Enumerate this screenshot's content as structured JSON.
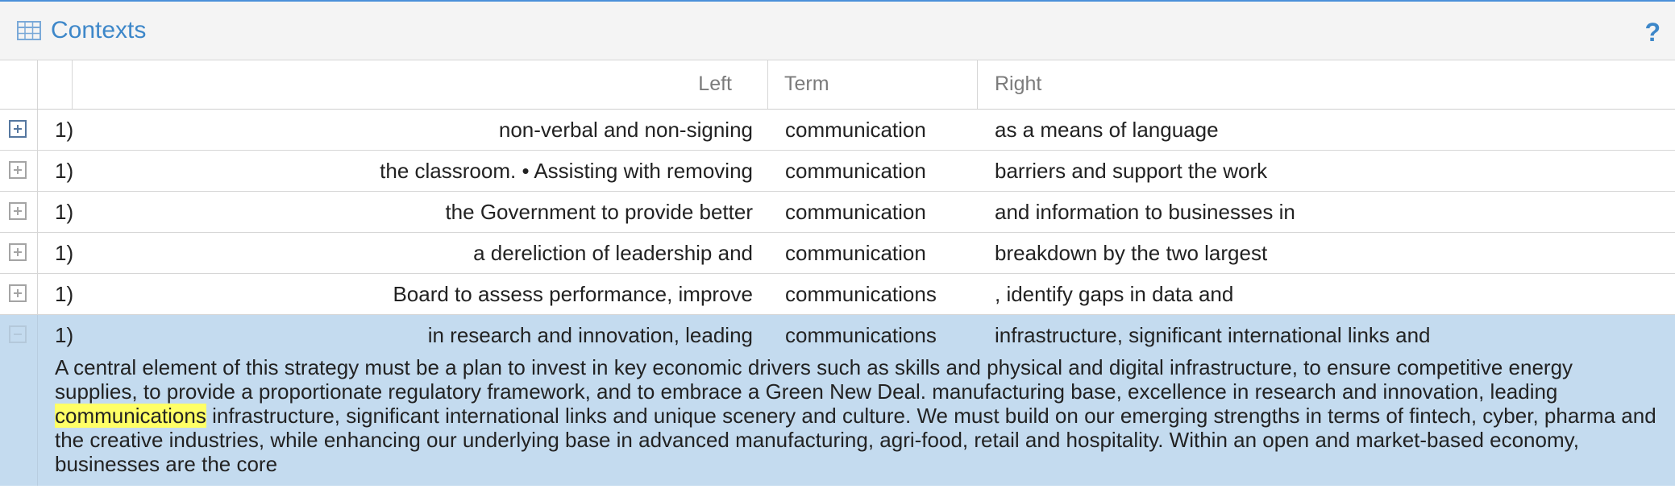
{
  "panel": {
    "title": "Contexts",
    "title_icon": "table-icon",
    "help_label": "?",
    "accent_color": "#3d87c9"
  },
  "columns": {
    "left": "Left",
    "term": "Term",
    "right": "Right"
  },
  "rows": [
    {
      "num": "1)",
      "left": "non-verbal and non-signing",
      "term": "communication",
      "right": "as a means of language",
      "expanded": false
    },
    {
      "num": "1)",
      "left": "the classroom. • Assisting with removing",
      "term": "communication",
      "right": "barriers and support the work",
      "expanded": false
    },
    {
      "num": "1)",
      "left": "the Government to provide better",
      "term": "communication",
      "right": "and information to businesses in",
      "expanded": false
    },
    {
      "num": "1)",
      "left": "a dereliction of leadership and",
      "term": "communication",
      "right": "breakdown by the two largest",
      "expanded": false
    },
    {
      "num": "1)",
      "left": "Board to assess performance, improve",
      "term": "communications",
      "right": ", identify gaps in data and",
      "expanded": false
    },
    {
      "num": "1)",
      "left": "in research and innovation, leading",
      "term": "communications",
      "right": "infrastructure, significant international links and",
      "expanded": true
    }
  ],
  "expanded_context": {
    "before": "A central element of this strategy must be a plan to invest in key economic drivers such as skills and physical and digital infrastructure, to ensure competitive energy supplies, to provide a proportionate regulatory framework, and to embrace a Green New Deal. manufacturing base, excellence in research and innovation, leading ",
    "highlight": "communications",
    "after": " infrastructure, significant international links and unique scenery and culture. We must build on our emerging strengths in terms of fintech, cyber, pharma and the creative industries, while enhancing our underlying base in advanced manufacturing, agri-food, retail and hospitality. Within an open and market-based economy, businesses are the core",
    "highlight_color": "#ffff66",
    "row_highlight_color": "#c4dbef"
  }
}
